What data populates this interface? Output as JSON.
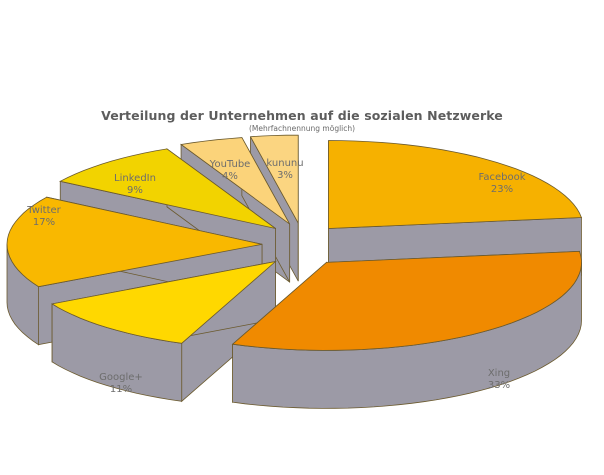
{
  "chart_data": {
    "type": "pie",
    "style": "3d-exploded",
    "title": "Verteilung der Unternehmen auf die sozialen Netzwerke",
    "subtitle": "(Mehrfachnennung möglich)",
    "unit": "%",
    "categories": [
      "Facebook",
      "Xing",
      "Google+",
      "Twitter",
      "LinkedIn",
      "YouTube",
      "kununu"
    ],
    "values": [
      23,
      33,
      11,
      17,
      9,
      4,
      3
    ],
    "labels": [
      "23%",
      "33%",
      "11%",
      "17%",
      "9%",
      "4%",
      "3%"
    ],
    "colors": [
      "#f6b100",
      "#f08a00",
      "#ffd800",
      "#f9b800",
      "#f2d300",
      "#fbd37a",
      "#fbd581"
    ],
    "side_color": "#9c9aa6",
    "edge_color": "#6b5a2e",
    "legend": "none"
  },
  "labels": {
    "facebook": {
      "name": "Facebook",
      "pct": "23%"
    },
    "xing": {
      "name": "Xing",
      "pct": "33%"
    },
    "googleplus": {
      "name": "Google+",
      "pct": "11%"
    },
    "twitter": {
      "name": "Twitter",
      "pct": "17%"
    },
    "linkedin": {
      "name": "LinkedIn",
      "pct": "9%"
    },
    "youtube": {
      "name": "YouTube",
      "pct": "4%"
    },
    "kununu": {
      "name": "kununu",
      "pct": "3%"
    }
  }
}
